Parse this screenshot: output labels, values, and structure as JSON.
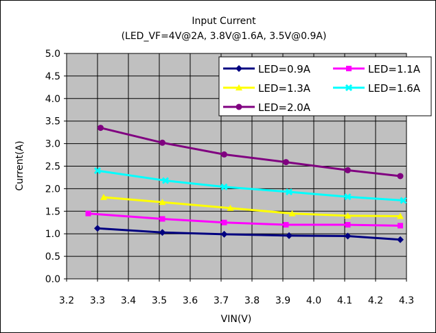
{
  "chart_data": {
    "type": "line",
    "title": "Input Current",
    "subtitle": "(LED_VF=4V@2A, 3.8V@1.6A, 3.5V@0.9A)",
    "xlabel": "VIN(V)",
    "ylabel": "Current(A)",
    "xlim": [
      3.2,
      4.3
    ],
    "ylim": [
      0.0,
      5.0
    ],
    "x_ticks": [
      "3.2",
      "3.3",
      "3.4",
      "3.5",
      "3.6",
      "3.7",
      "3.8",
      "3.9",
      "4.0",
      "4.1",
      "4.2",
      "4.3"
    ],
    "y_ticks": [
      "0.0",
      "0.5",
      "1.0",
      "1.5",
      "2.0",
      "2.5",
      "3.0",
      "3.5",
      "4.0",
      "4.5",
      "5.0"
    ],
    "grid": true,
    "legend_position": "top-right",
    "series": [
      {
        "name": "LED=0.9A",
        "color": "#000080",
        "marker": "diamond",
        "x": [
          3.3,
          3.51,
          3.71,
          3.92,
          4.11,
          4.28
        ],
        "y": [
          1.12,
          1.03,
          0.99,
          0.96,
          0.95,
          0.87
        ]
      },
      {
        "name": "LED=1.1A",
        "color": "#ff00ff",
        "marker": "square",
        "x": [
          3.27,
          3.51,
          3.71,
          3.91,
          4.11,
          4.28
        ],
        "y": [
          1.45,
          1.33,
          1.25,
          1.2,
          1.2,
          1.18
        ]
      },
      {
        "name": "LED=1.3A",
        "color": "#ffff00",
        "marker": "triangle",
        "x": [
          3.32,
          3.51,
          3.73,
          3.93,
          4.11,
          4.28
        ],
        "y": [
          1.81,
          1.7,
          1.57,
          1.45,
          1.4,
          1.39
        ]
      },
      {
        "name": "LED=1.6A",
        "color": "#00ffff",
        "marker": "x",
        "x": [
          3.3,
          3.52,
          3.71,
          3.92,
          4.11,
          4.29
        ],
        "y": [
          2.4,
          2.18,
          2.04,
          1.93,
          1.82,
          1.74
        ]
      },
      {
        "name": "LED=2.0A",
        "color": "#800080",
        "marker": "star",
        "x": [
          3.31,
          3.51,
          3.71,
          3.91,
          4.11,
          4.28
        ],
        "y": [
          3.35,
          3.02,
          2.76,
          2.59,
          2.41,
          2.28
        ]
      }
    ]
  },
  "colors": {
    "plot_background": "#c0c0c0",
    "gridline": "#000000",
    "frame": "#000000"
  }
}
